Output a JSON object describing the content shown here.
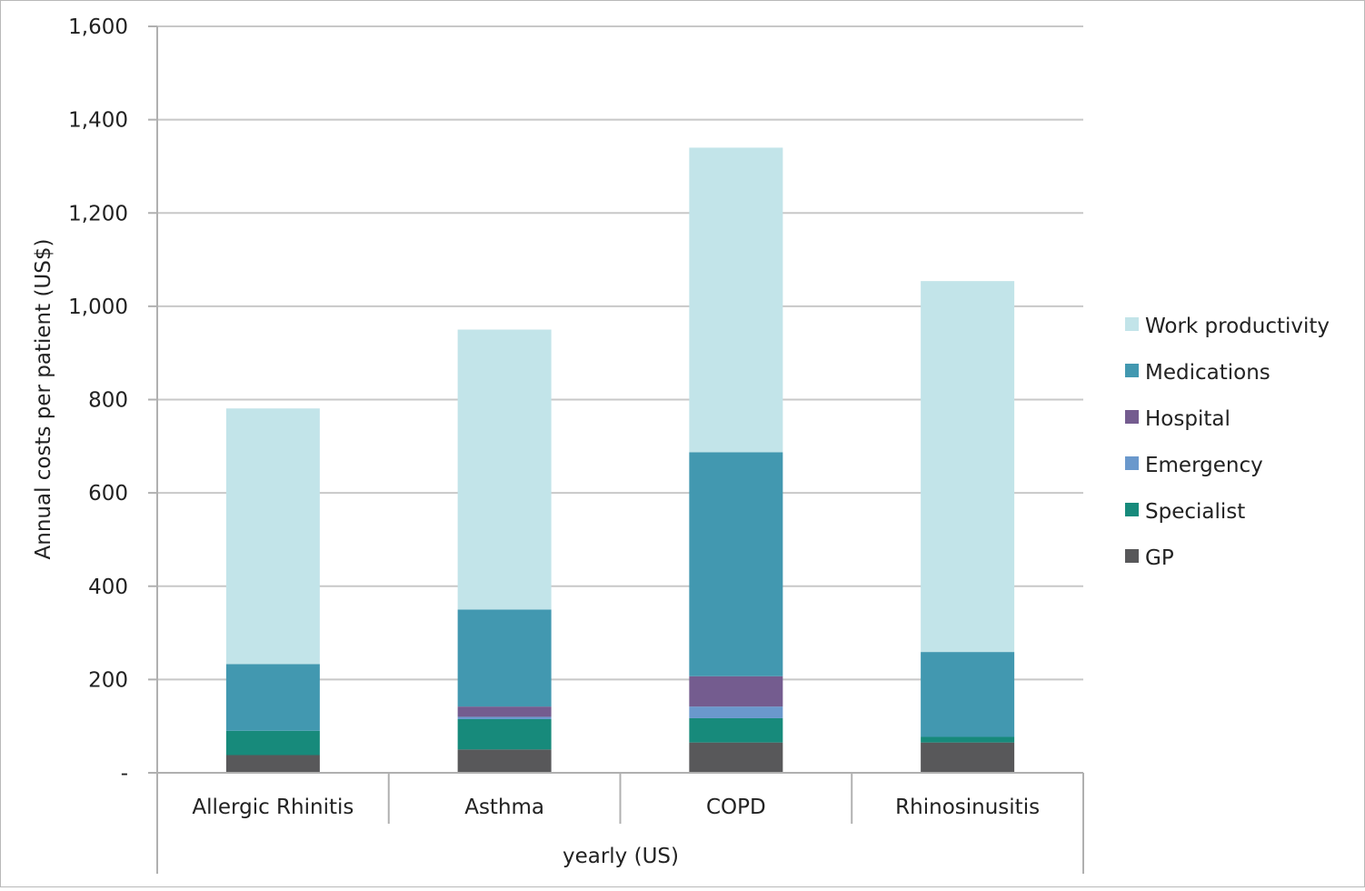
{
  "chart_data": {
    "type": "bar",
    "stacked": true,
    "categories": [
      "Allergic Rhinitis",
      "Asthma",
      "COPD",
      "Rhinosinusitis"
    ],
    "group_label": "yearly (US)",
    "ylabel": "Annual costs per patient (US$)",
    "ylim": [
      0,
      1600
    ],
    "y_ticks": [
      {
        "value": 0,
        "label": "-"
      },
      {
        "value": 200,
        "label": "200"
      },
      {
        "value": 400,
        "label": "400"
      },
      {
        "value": 600,
        "label": "600"
      },
      {
        "value": 800,
        "label": "800"
      },
      {
        "value": 1000,
        "label": "1,000"
      },
      {
        "value": 1200,
        "label": "1,200"
      },
      {
        "value": 1400,
        "label": "1,400"
      },
      {
        "value": 1600,
        "label": "1,600"
      }
    ],
    "grid": true,
    "legend_position": "right",
    "series": [
      {
        "name": "GP",
        "color": "#58585a",
        "values": [
          38,
          50,
          65,
          65
        ]
      },
      {
        "name": "Specialist",
        "color": "#178a7b",
        "values": [
          52,
          65,
          52,
          12
        ]
      },
      {
        "name": "Emergency",
        "color": "#6a98cc",
        "values": [
          0,
          5,
          25,
          0
        ]
      },
      {
        "name": "Hospital",
        "color": "#745c8f",
        "values": [
          0,
          22,
          65,
          0
        ]
      },
      {
        "name": "Medications",
        "color": "#4298b0",
        "values": [
          143,
          208,
          480,
          182
        ]
      },
      {
        "name": "Work productivity",
        "color": "#c2e4e9",
        "values": [
          548,
          600,
          653,
          795
        ]
      }
    ]
  }
}
